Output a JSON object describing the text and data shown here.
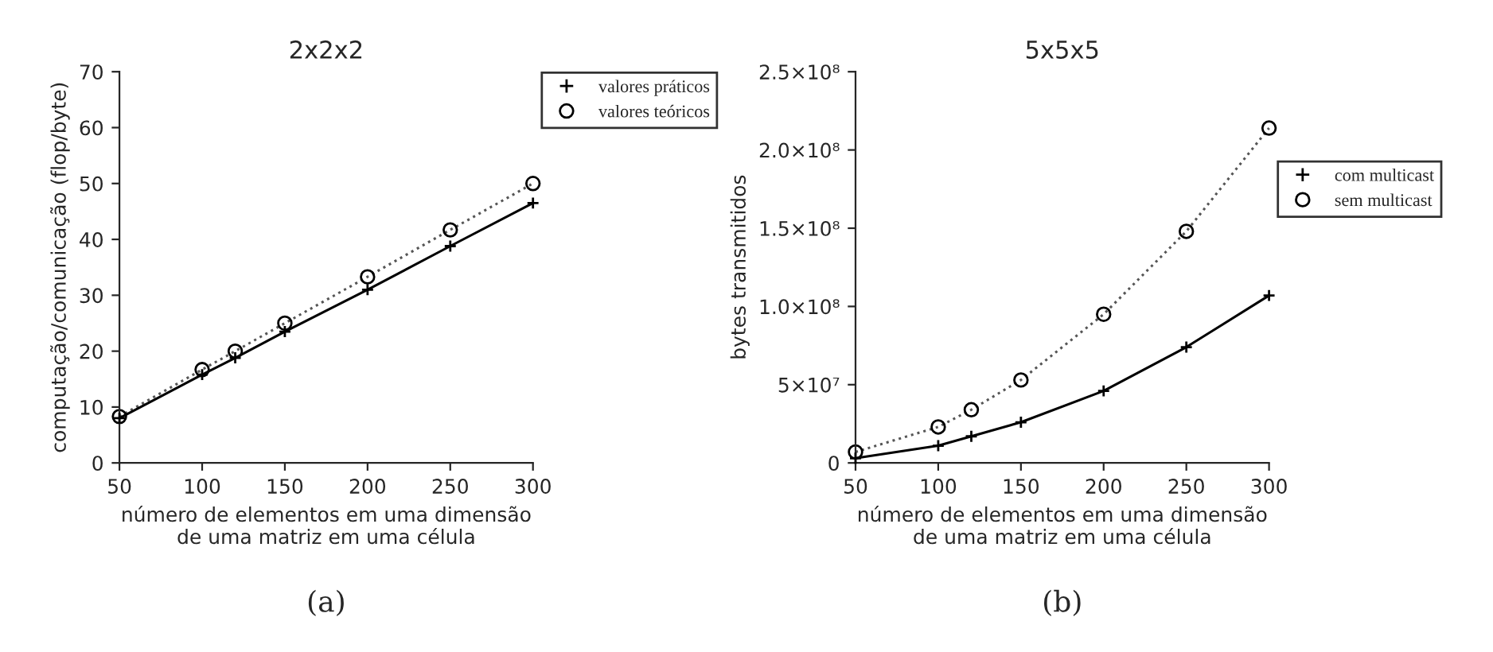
{
  "chart_data": [
    {
      "type": "line",
      "title": "2x2x2",
      "xlabel": "número de elementos em uma dimensão\nde uma matriz em uma célula",
      "ylabel": "computação/comunicação (flop/byte)",
      "x": [
        50,
        100,
        120,
        150,
        200,
        250,
        300
      ],
      "series": [
        {
          "name": "valores práticos",
          "color": "#000000",
          "marker": "cross",
          "line_style": "solid",
          "values": [
            8,
            15.8,
            18.8,
            23.5,
            31,
            38.8,
            46.5
          ]
        },
        {
          "name": "valores teóricos",
          "color": "#555555",
          "marker": "circle",
          "line_style": "dotted",
          "values": [
            8.3,
            16.7,
            20,
            25,
            33.3,
            41.7,
            50
          ]
        }
      ],
      "xlim": [
        50,
        300
      ],
      "xticks": [
        50,
        100,
        150,
        200,
        250,
        300
      ],
      "ylim": [
        0,
        70
      ],
      "yticks": [
        0,
        10,
        20,
        30,
        40,
        50,
        60,
        70
      ],
      "grid": false,
      "legend": "top right",
      "annotations": [
        "(a)"
      ]
    },
    {
      "type": "line",
      "title": "5x5x5",
      "xlabel": "número de elementos em uma dimensão\nde uma matriz em uma célula",
      "ylabel": "bytes transmitidos",
      "x": [
        50,
        100,
        120,
        150,
        200,
        250,
        300
      ],
      "series": [
        {
          "name": "com multicast",
          "color": "#000000",
          "marker": "cross",
          "line_style": "solid",
          "values": [
            3000000,
            11000000,
            17000000,
            26000000,
            46000000,
            74000000,
            107000000
          ]
        },
        {
          "name": "sem multicast",
          "color": "#555555",
          "marker": "circle",
          "line_style": "dotted",
          "values": [
            7000000,
            23000000,
            34000000,
            53000000,
            95000000,
            148000000,
            214000000
          ]
        }
      ],
      "xlim": [
        50,
        300
      ],
      "xticks": [
        50,
        100,
        150,
        200,
        250,
        300
      ],
      "ylim": [
        0,
        250000000
      ],
      "yticks": [
        0,
        {
          "value": 50000000,
          "label": "5×10⁷"
        },
        {
          "value": 100000000,
          "label": "1.0×10⁸"
        },
        {
          "value": 150000000,
          "label": "1.5×10⁸"
        },
        {
          "value": 200000000,
          "label": "2.0×10⁸"
        },
        {
          "value": 250000000,
          "label": "2.5×10⁸"
        }
      ],
      "grid": false,
      "legend": "right",
      "annotations": [
        "(b)"
      ]
    }
  ]
}
